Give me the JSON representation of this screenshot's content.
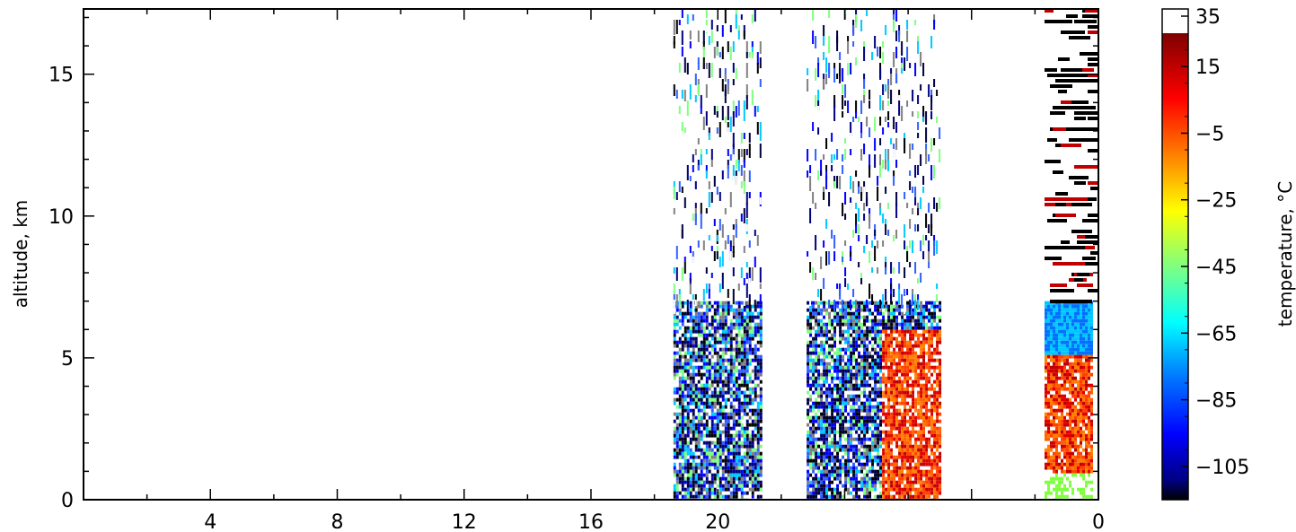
{
  "chart_data": {
    "type": "heatmap",
    "title": "",
    "xlabel": "",
    "ylabel": "altitude, km",
    "x_ticks": [
      "4",
      "8",
      "12",
      "16",
      "20",
      "0"
    ],
    "y_ticks": [
      "0",
      "5",
      "10",
      "15"
    ],
    "ylim": [
      0,
      17.3
    ],
    "grid": false,
    "colorbar": {
      "label": "temperature, °C",
      "ticks": [
        "35",
        "15",
        "−5",
        "−25",
        "−45",
        "−65",
        "−85",
        "−105"
      ],
      "range": [
        -115,
        35
      ],
      "over_color": "#ffffff",
      "colormap": [
        "#000000",
        "#00007f",
        "#0000ff",
        "#007fff",
        "#00ffff",
        "#7fff7f",
        "#ffff00",
        "#ff7f00",
        "#ff0000",
        "#7f0000"
      ]
    },
    "data_bands": [
      {
        "name": "band-1",
        "x_range": [
          18.6,
          21.4
        ],
        "dense_top_km": 7.0,
        "sparse_top_km": 17.3,
        "dominant_low": "mixed black/blue/white",
        "dominant_high": "sparse mixed"
      },
      {
        "name": "band-2",
        "x_range": [
          22.8,
          27.0
        ],
        "dense_top_km": 7.0,
        "sparse_top_km": 17.3,
        "dominant_low": "mixed, red/orange on right side",
        "dominant_high": "sparse mixed"
      },
      {
        "name": "band-3",
        "x_range": [
          30.3,
          31.8
        ],
        "dense_top_km": 7.0,
        "sparse_top_km": 17.3,
        "dominant_low": "orange/red with blue near 5-7 km",
        "dominant_high": "sparse black/white dashes"
      }
    ]
  }
}
